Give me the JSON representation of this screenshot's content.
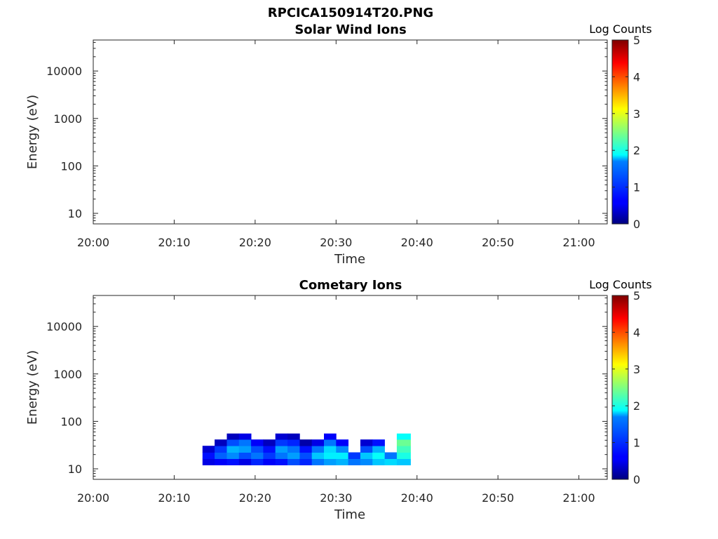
{
  "figure": {
    "title": "RPCICA150914T20.PNG"
  },
  "chart_data": [
    {
      "type": "heatmap",
      "title": "Solar Wind Ions",
      "xlabel": "Time",
      "ylabel": "Energy (eV)",
      "x_ticks": [
        "20:00",
        "20:10",
        "20:20",
        "20:30",
        "20:40",
        "20:50",
        "21:00"
      ],
      "x_range_minutes": [
        0,
        63.5
      ],
      "y_scale": "log",
      "y_ticks": [
        "10",
        "100",
        "1000",
        "10000"
      ],
      "y_range_eV": [
        6,
        45000
      ],
      "colorbar": {
        "label": "Log Counts",
        "ticks": [
          "0",
          "1",
          "2",
          "3",
          "4",
          "5"
        ],
        "range": [
          0,
          5
        ],
        "colormap": "jet"
      },
      "data": []
    },
    {
      "type": "heatmap",
      "title": "Cometary Ions",
      "xlabel": "Time",
      "ylabel": "Energy (eV)",
      "x_ticks": [
        "20:00",
        "20:10",
        "20:20",
        "20:30",
        "20:40",
        "20:50",
        "21:00"
      ],
      "x_range_minutes": [
        0,
        63.5
      ],
      "y_scale": "log",
      "y_ticks": [
        "10",
        "100",
        "1000",
        "10000"
      ],
      "y_range_eV": [
        6,
        45000
      ],
      "colorbar": {
        "label": "Log Counts",
        "ticks": [
          "0",
          "1",
          "2",
          "3",
          "4",
          "5"
        ],
        "range": [
          0,
          5
        ],
        "colormap": "jet"
      },
      "data_time_range_minutes": [
        13.5,
        39.2
      ],
      "energy_levels_eV": [
        14,
        19,
        26,
        36,
        48
      ],
      "data": [
        {
          "t": [
            13.5,
            15.0
          ],
          "v": [
            0.5,
            0.7,
            0.4,
            0.0,
            0.0
          ]
        },
        {
          "t": [
            15.0,
            16.5
          ],
          "v": [
            0.6,
            1.1,
            0.9,
            0.3,
            0.0
          ]
        },
        {
          "t": [
            16.5,
            18.0
          ],
          "v": [
            0.7,
            1.3,
            1.5,
            1.0,
            0.3
          ]
        },
        {
          "t": [
            18.0,
            19.5
          ],
          "v": [
            0.5,
            1.0,
            1.4,
            1.2,
            0.5
          ]
        },
        {
          "t": [
            19.5,
            21.0
          ],
          "v": [
            0.8,
            1.2,
            1.0,
            0.6,
            0.0
          ]
        },
        {
          "t": [
            21.0,
            22.5
          ],
          "v": [
            0.6,
            0.9,
            0.7,
            0.3,
            0.0
          ]
        },
        {
          "t": [
            22.5,
            24.0
          ],
          "v": [
            0.7,
            1.2,
            1.4,
            0.9,
            0.4
          ]
        },
        {
          "t": [
            24.0,
            25.5
          ],
          "v": [
            1.0,
            1.4,
            1.2,
            0.8,
            0.3
          ]
        },
        {
          "t": [
            25.5,
            27.0
          ],
          "v": [
            0.8,
            1.0,
            0.7,
            0.2,
            0.0
          ]
        },
        {
          "t": [
            27.0,
            28.5
          ],
          "v": [
            1.2,
            1.6,
            1.2,
            0.5,
            0.0
          ]
        },
        {
          "t": [
            28.5,
            30.0
          ],
          "v": [
            1.4,
            1.8,
            1.7,
            1.2,
            0.6
          ]
        },
        {
          "t": [
            30.0,
            31.5
          ],
          "v": [
            1.5,
            1.8,
            1.3,
            0.6,
            0.0
          ]
        },
        {
          "t": [
            31.5,
            33.0
          ],
          "v": [
            1.2,
            0.9,
            0.0,
            0.0,
            0.0
          ]
        },
        {
          "t": [
            33.0,
            34.5
          ],
          "v": [
            1.3,
            1.6,
            1.0,
            0.4,
            0.0
          ]
        },
        {
          "t": [
            34.5,
            36.0
          ],
          "v": [
            1.6,
            1.9,
            1.5,
            0.7,
            0.0
          ]
        },
        {
          "t": [
            36.0,
            37.5
          ],
          "v": [
            1.7,
            1.2,
            0.0,
            0.0,
            0.0
          ]
        },
        {
          "t": [
            37.5,
            39.2
          ],
          "v": [
            1.6,
            2.0,
            2.2,
            2.4,
            1.9
          ]
        }
      ]
    }
  ]
}
